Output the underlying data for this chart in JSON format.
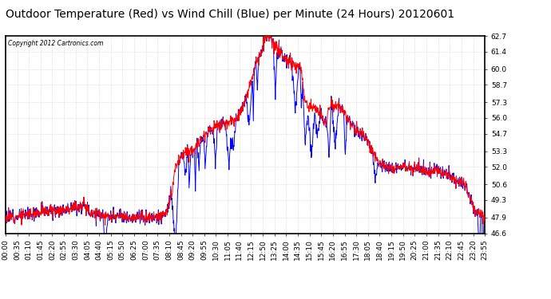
{
  "title": "Outdoor Temperature (Red) vs Wind Chill (Blue) per Minute (24 Hours) 20120601",
  "copyright_text": "Copyright 2012 Cartronics.com",
  "ylim": [
    46.6,
    62.7
  ],
  "yticks": [
    46.6,
    47.9,
    49.3,
    50.6,
    52.0,
    53.3,
    54.7,
    56.0,
    57.3,
    58.7,
    60.0,
    61.4,
    62.7
  ],
  "x_tick_labels": [
    "00:00",
    "00:35",
    "01:10",
    "01:45",
    "02:20",
    "02:55",
    "03:30",
    "04:05",
    "04:40",
    "05:15",
    "05:50",
    "06:25",
    "07:00",
    "07:35",
    "08:10",
    "08:45",
    "09:20",
    "09:55",
    "10:30",
    "11:05",
    "11:40",
    "12:15",
    "12:50",
    "13:25",
    "14:00",
    "14:35",
    "15:10",
    "15:45",
    "16:20",
    "16:55",
    "17:30",
    "18:05",
    "18:40",
    "19:15",
    "19:50",
    "20:25",
    "21:00",
    "21:35",
    "22:10",
    "22:45",
    "23:20",
    "23:55"
  ],
  "background_color": "#ffffff",
  "grid_color": "#bbbbbb",
  "title_fontsize": 10,
  "tick_fontsize": 6.5,
  "line_color_red": "#ff0000",
  "line_color_blue": "#0000ff",
  "temp_control_times": [
    0,
    0.5,
    1,
    1.5,
    2,
    2.5,
    3,
    3.5,
    4,
    4.2,
    4.5,
    4.8,
    5,
    5.5,
    5.8,
    6,
    6.5,
    7,
    7.5,
    8,
    8.3,
    8.5,
    8.7,
    9,
    9.5,
    10,
    10.5,
    11,
    11.5,
    12,
    12.3,
    12.5,
    12.8,
    13.0,
    13.2,
    13.5,
    14.0,
    14.3,
    14.5,
    14.8,
    15.0,
    15.3,
    15.5,
    15.8,
    16.0,
    16.3,
    16.5,
    16.8,
    17.0,
    17.3,
    17.5,
    18.0,
    18.5,
    19.0,
    19.5,
    20.0,
    20.5,
    21.0,
    21.3,
    21.5,
    21.8,
    22.0,
    22.5,
    23.0,
    23.5,
    24.0
  ],
  "temp_control_vals": [
    47.9,
    48.0,
    48.1,
    48.3,
    48.4,
    48.5,
    48.6,
    48.8,
    48.9,
    48.4,
    48.2,
    48.1,
    47.9,
    47.9,
    47.9,
    47.9,
    47.9,
    47.9,
    47.9,
    48.2,
    49.5,
    52.0,
    52.5,
    53.2,
    53.5,
    54.8,
    55.3,
    55.5,
    55.8,
    57.2,
    59.0,
    60.5,
    61.2,
    62.7,
    62.5,
    61.8,
    60.8,
    60.5,
    60.3,
    60.0,
    57.2,
    57.0,
    56.8,
    56.3,
    55.5,
    57.3,
    57.0,
    56.8,
    56.5,
    55.5,
    55.0,
    54.5,
    52.8,
    52.0,
    52.0,
    52.0,
    52.0,
    51.8,
    51.5,
    51.8,
    51.5,
    51.5,
    51.0,
    50.6,
    48.5,
    47.9
  ],
  "wc_spike_times": [
    5.0,
    8.5,
    9.0,
    9.2,
    9.5,
    9.7,
    10.0,
    10.5,
    11.2,
    11.4,
    12.2,
    12.4,
    12.6,
    13.5,
    14.5,
    14.8,
    15.0,
    15.3,
    15.6,
    16.2,
    16.5,
    17.0,
    18.5,
    23.7,
    23.9
  ],
  "wc_spike_depths": [
    2.5,
    6.8,
    2.0,
    2.5,
    3.5,
    2.0,
    2.5,
    3.0,
    3.5,
    2.5,
    3.0,
    3.5,
    2.5,
    4.0,
    3.5,
    3.0,
    3.5,
    4.0,
    2.0,
    4.0,
    3.0,
    3.5,
    2.0,
    3.5,
    5.0
  ]
}
